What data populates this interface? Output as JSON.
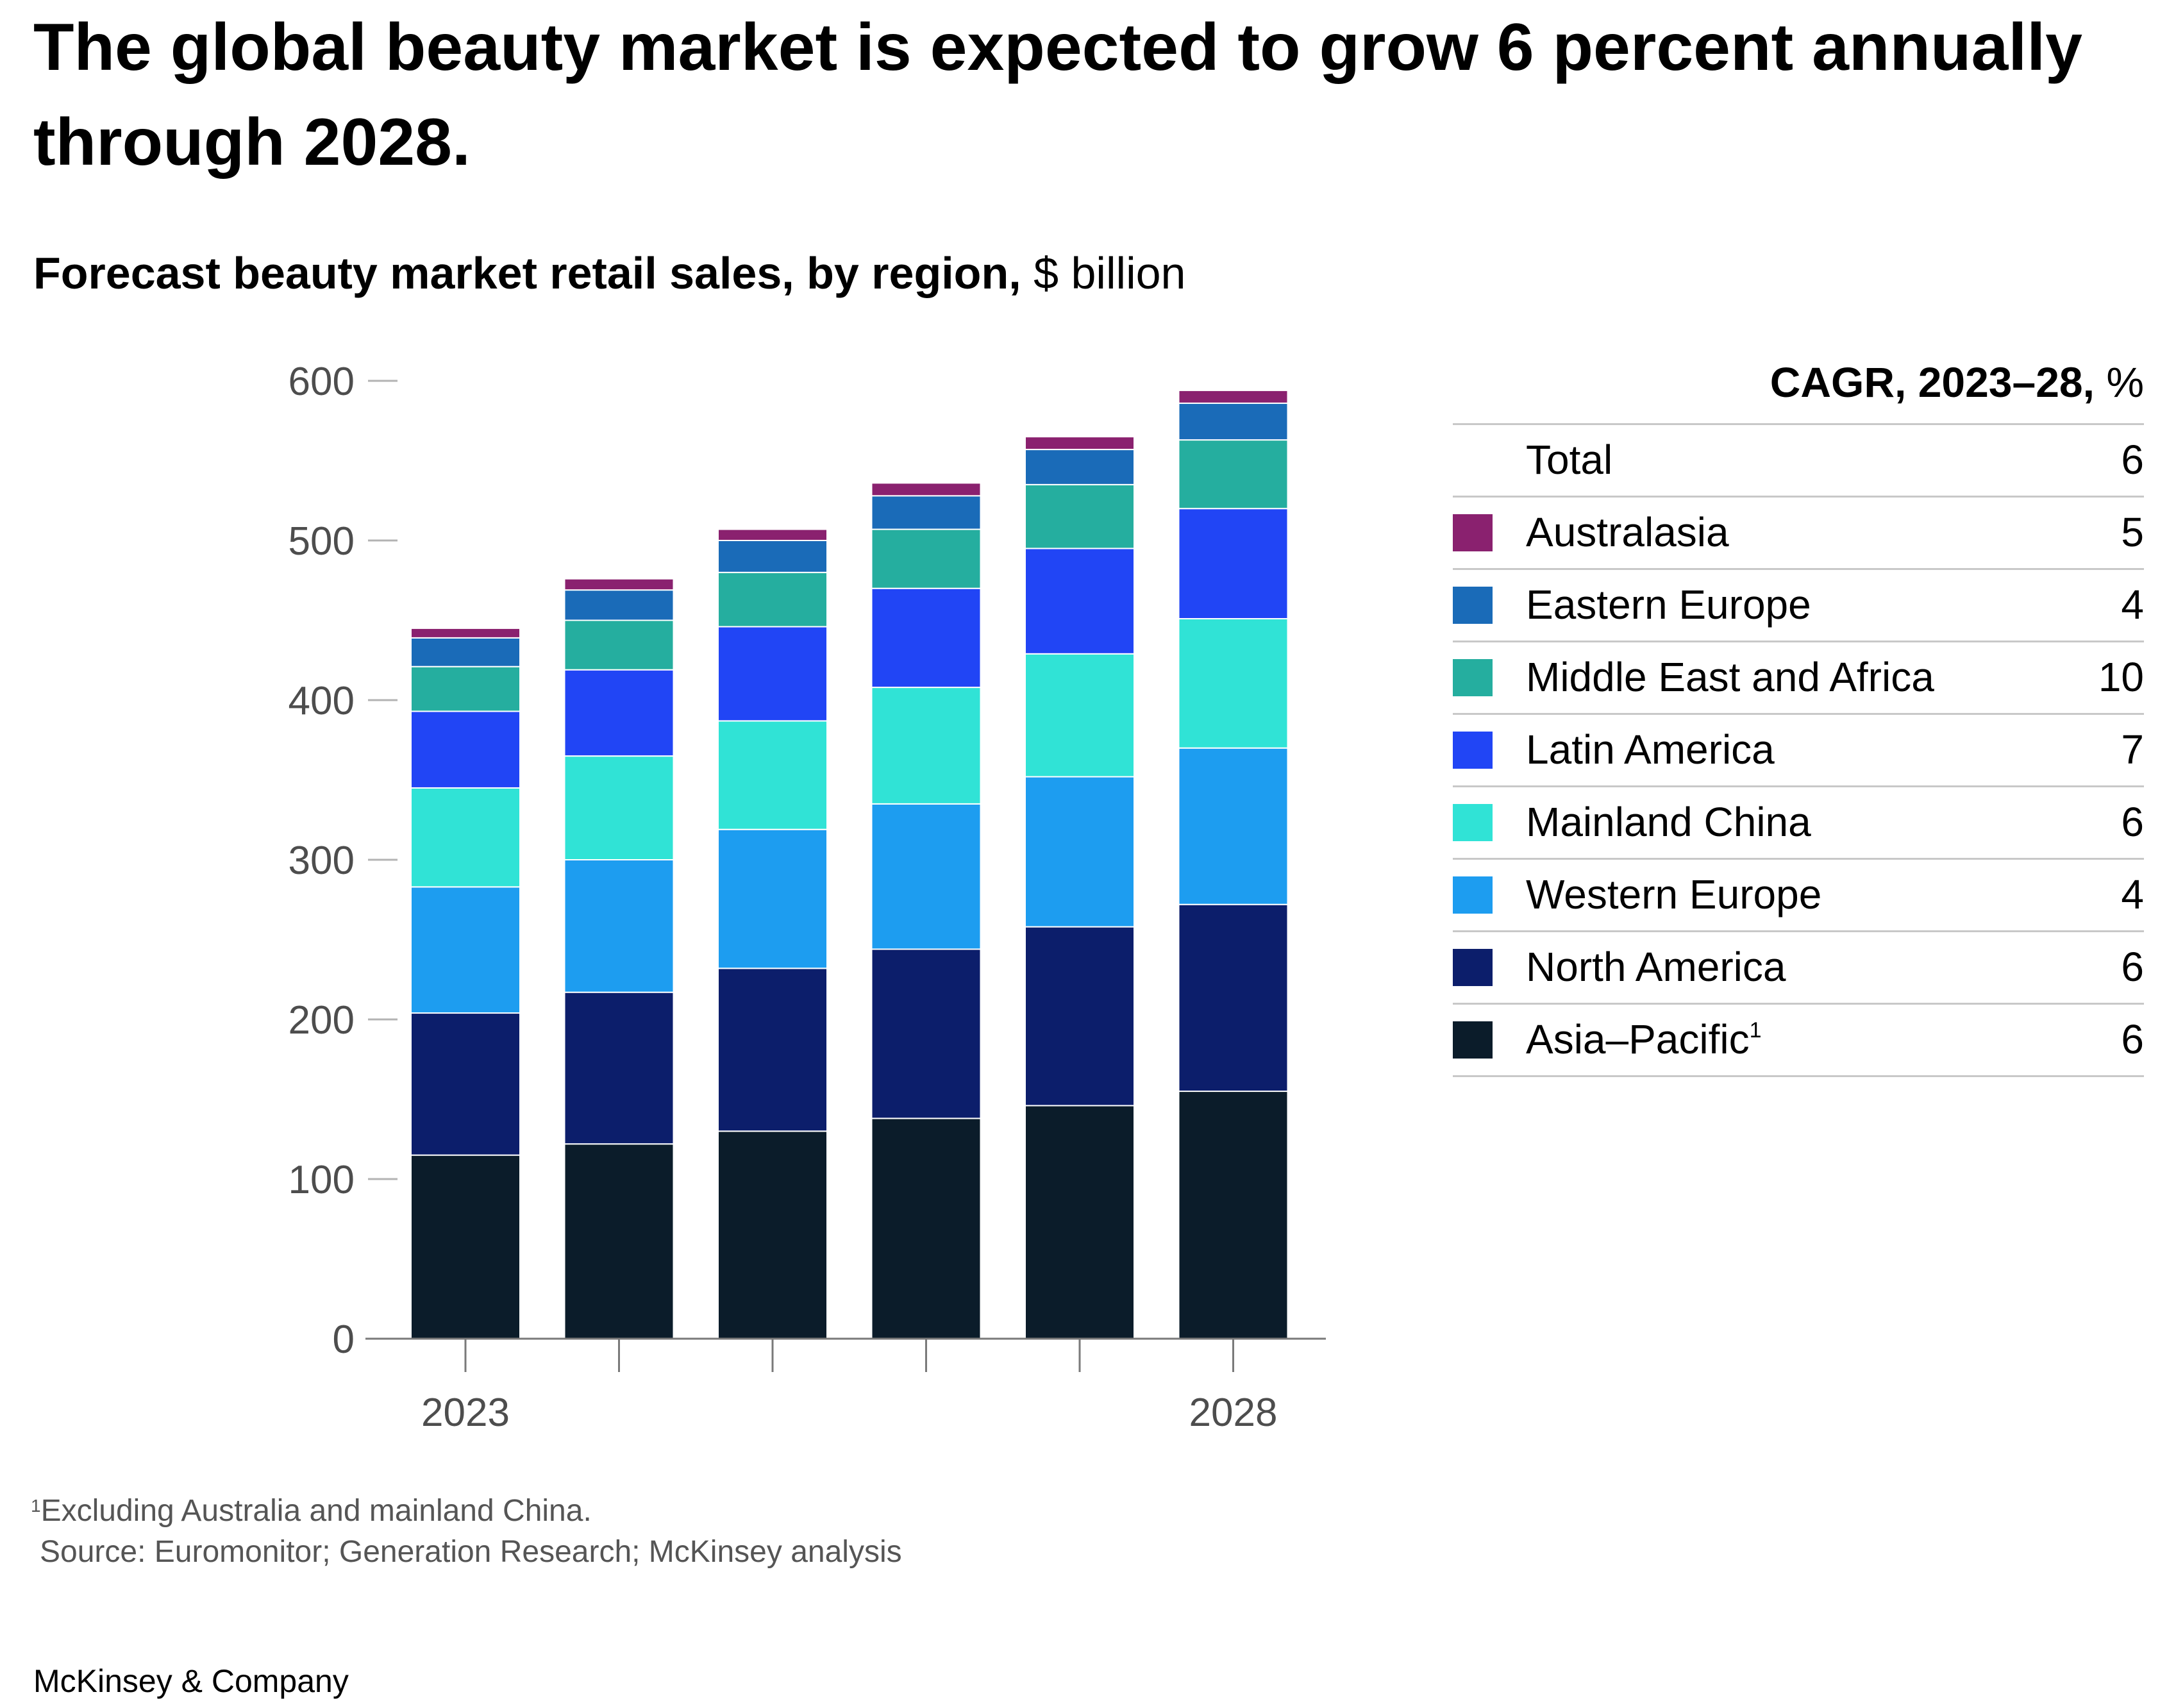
{
  "chart_data": {
    "type": "bar",
    "stacked": true,
    "title": "The global beauty market is expected to grow 6 percent annually through 2028.",
    "subtitle_bold": "Forecast beauty market retail sales, by region,",
    "subtitle_unit": "$ billion",
    "x_tick_labels": [
      "2023",
      "",
      "",
      "",
      "",
      "2028"
    ],
    "yticks": [
      0,
      100,
      200,
      300,
      400,
      500,
      600
    ],
    "ylim": [
      0,
      600
    ],
    "series": [
      {
        "name": "Asia–Pacific",
        "footnote_mark": "1",
        "color": "#0b1c2a",
        "cagr": "6",
        "values": [
          115,
          122,
          130,
          138,
          146,
          155
        ]
      },
      {
        "name": "North America",
        "color": "#0c1e6b",
        "cagr": "6",
        "values": [
          89,
          95,
          102,
          106,
          112,
          117
        ]
      },
      {
        "name": "Western Europe",
        "color": "#1d9df0",
        "cagr": "4",
        "values": [
          79,
          83,
          87,
          91,
          94,
          98
        ]
      },
      {
        "name": "Mainland China",
        "color": "#30e3d6",
        "cagr": "6",
        "values": [
          62,
          65,
          68,
          73,
          77,
          81
        ]
      },
      {
        "name": "Latin America",
        "color": "#2145f5",
        "cagr": "7",
        "values": [
          48,
          54,
          59,
          62,
          66,
          69
        ]
      },
      {
        "name": "Middle East and Africa",
        "color": "#25ae9f",
        "cagr": "10",
        "values": [
          28,
          31,
          34,
          37,
          40,
          43
        ]
      },
      {
        "name": "Eastern Europe",
        "color": "#1a6bb8",
        "cagr": "4",
        "values": [
          18,
          19,
          20,
          21,
          22,
          23
        ]
      },
      {
        "name": "Australasia",
        "color": "#8a216f",
        "cagr": "5",
        "values": [
          6,
          7,
          7,
          8,
          8,
          8
        ]
      }
    ],
    "legend": {
      "heading_bold": "CAGR, 2023–28,",
      "heading_unit": "%",
      "total_label": "Total",
      "total_value": "6"
    },
    "footnote": {
      "mark": "1",
      "text": "Excluding Australia and mainland China."
    },
    "source": "Source: Euromonitor; Generation Research; McKinsey analysis"
  },
  "brand": "McKinsey & Company"
}
